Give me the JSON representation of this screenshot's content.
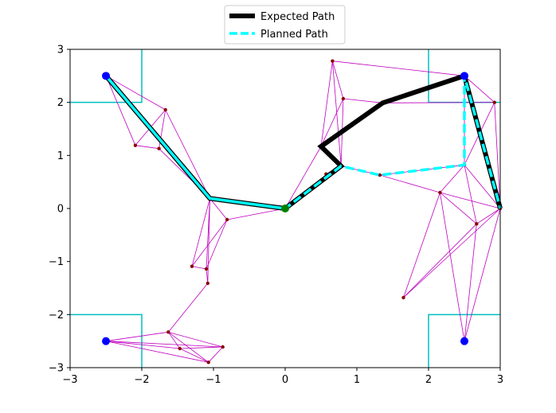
{
  "chart_data": {
    "type": "line",
    "title": "",
    "xlabel": "",
    "ylabel": "",
    "xlim": [
      -3,
      3
    ],
    "ylim": [
      -3,
      3
    ],
    "xticks": [
      -3,
      -2,
      -1,
      0,
      1,
      2,
      3
    ],
    "yticks": [
      -3,
      -2,
      -1,
      0,
      1,
      2,
      3
    ],
    "xtick_labels": [
      "−3",
      "−2",
      "−1",
      "0",
      "1",
      "2",
      "3"
    ],
    "ytick_labels": [
      "−3",
      "−2",
      "−1",
      "0",
      "1",
      "2",
      "3"
    ],
    "grid": false,
    "legend": {
      "location": "top-center",
      "entries": [
        {
          "label": "Expected Path",
          "color": "#000000",
          "style": "solid"
        },
        {
          "label": "Planned Path",
          "color": "#00ffff",
          "style": "dashed"
        }
      ]
    },
    "obstacle_color": "#00bfbf",
    "obstacle_corners": [
      {
        "points": [
          [
            -2,
            3
          ],
          [
            -2,
            2
          ],
          [
            -3,
            2
          ]
        ]
      },
      {
        "points": [
          [
            2,
            3
          ],
          [
            2,
            2
          ],
          [
            3,
            2
          ]
        ]
      },
      {
        "points": [
          [
            -3,
            -2
          ],
          [
            -2,
            -2
          ],
          [
            -2,
            -3
          ]
        ]
      },
      {
        "points": [
          [
            3,
            -2
          ],
          [
            2,
            -2
          ],
          [
            2,
            -3
          ]
        ]
      }
    ],
    "graph_color": "#bf00bf",
    "graph_nodes": [
      [
        -2.5,
        2.5
      ],
      [
        -1.67,
        1.86
      ],
      [
        -2.09,
        1.19
      ],
      [
        -1.76,
        1.13
      ],
      [
        -1.05,
        0.19
      ],
      [
        -0.81,
        -0.21
      ],
      [
        -1.3,
        -1.09
      ],
      [
        -1.1,
        -1.14
      ],
      [
        -1.08,
        -1.41
      ],
      [
        -1.63,
        -2.33
      ],
      [
        -1.47,
        -2.64
      ],
      [
        -0.87,
        -2.61
      ],
      [
        -1.07,
        -2.9
      ],
      [
        -2.5,
        -2.5
      ],
      [
        0.0,
        0.0
      ],
      [
        -0.28,
        0.05
      ],
      [
        0.66,
        2.78
      ],
      [
        0.81,
        2.07
      ],
      [
        0.5,
        1.17
      ],
      [
        0.78,
        0.8
      ],
      [
        0.57,
        0.65
      ],
      [
        1.32,
        0.63
      ],
      [
        1.36,
        1.99
      ],
      [
        2.5,
        2.5
      ],
      [
        2.92,
        2.0
      ],
      [
        2.5,
        0.82
      ],
      [
        2.16,
        0.3
      ],
      [
        3.0,
        0.0
      ],
      [
        2.67,
        -0.29
      ],
      [
        1.65,
        -1.68
      ],
      [
        2.5,
        -2.5
      ]
    ],
    "graph_edges": [
      [
        0,
        4
      ],
      [
        0,
        1
      ],
      [
        0,
        2
      ],
      [
        1,
        2
      ],
      [
        1,
        3
      ],
      [
        2,
        3
      ],
      [
        3,
        4
      ],
      [
        1,
        4
      ],
      [
        4,
        14
      ],
      [
        4,
        5
      ],
      [
        4,
        6
      ],
      [
        4,
        7
      ],
      [
        4,
        8
      ],
      [
        5,
        14
      ],
      [
        5,
        6
      ],
      [
        5,
        7
      ],
      [
        6,
        7
      ],
      [
        7,
        8
      ],
      [
        8,
        9
      ],
      [
        9,
        10
      ],
      [
        9,
        11
      ],
      [
        9,
        12
      ],
      [
        9,
        13
      ],
      [
        10,
        11
      ],
      [
        10,
        13
      ],
      [
        10,
        12
      ],
      [
        11,
        12
      ],
      [
        11,
        13
      ],
      [
        12,
        13
      ],
      [
        14,
        15
      ],
      [
        14,
        19
      ],
      [
        14,
        18
      ],
      [
        19,
        20
      ],
      [
        19,
        21
      ],
      [
        19,
        18
      ],
      [
        19,
        16
      ],
      [
        18,
        16
      ],
      [
        18,
        17
      ],
      [
        17,
        16
      ],
      [
        17,
        19
      ],
      [
        17,
        22
      ],
      [
        16,
        23
      ],
      [
        22,
        23
      ],
      [
        22,
        24
      ],
      [
        23,
        24
      ],
      [
        23,
        25
      ],
      [
        24,
        25
      ],
      [
        24,
        27
      ],
      [
        21,
        25
      ],
      [
        21,
        26
      ],
      [
        25,
        26
      ],
      [
        25,
        27
      ],
      [
        26,
        27
      ],
      [
        26,
        28
      ],
      [
        26,
        29
      ],
      [
        26,
        30
      ],
      [
        27,
        28
      ],
      [
        27,
        29
      ],
      [
        27,
        30
      ],
      [
        28,
        30
      ],
      [
        28,
        29
      ],
      [
        25,
        28
      ]
    ],
    "graph_node_color": "#8b0000",
    "special_points": [
      {
        "x": -2.5,
        "y": 2.5,
        "color": "#0000ff"
      },
      {
        "x": 2.5,
        "y": 2.5,
        "color": "#0000ff"
      },
      {
        "x": -2.5,
        "y": -2.5,
        "color": "#0000ff"
      },
      {
        "x": 2.5,
        "y": -2.5,
        "color": "#0000ff"
      },
      {
        "x": 0.0,
        "y": 0.0,
        "color": "#008000"
      }
    ],
    "series": [
      {
        "name": "Expected Path",
        "color": "#000000",
        "x": [
          0.0,
          -0.28,
          -1.05,
          -2.5,
          -1.05,
          -0.28,
          0.0,
          0.78,
          0.5,
          1.36,
          2.5,
          3.0
        ],
        "y": [
          0.0,
          0.05,
          0.19,
          2.5,
          0.19,
          0.05,
          0.0,
          0.8,
          1.17,
          1.99,
          2.5,
          0.0
        ]
      },
      {
        "name": "Planned Path",
        "color": "#00ffff",
        "x": [
          0.0,
          -0.28,
          -1.05,
          -2.5,
          -1.05,
          -0.28,
          0.0,
          0.78,
          1.32,
          2.5,
          2.5,
          3.0
        ],
        "y": [
          0.0,
          0.05,
          0.19,
          2.5,
          0.19,
          0.05,
          0.0,
          0.8,
          0.63,
          0.82,
          2.5,
          0.0
        ]
      }
    ]
  }
}
